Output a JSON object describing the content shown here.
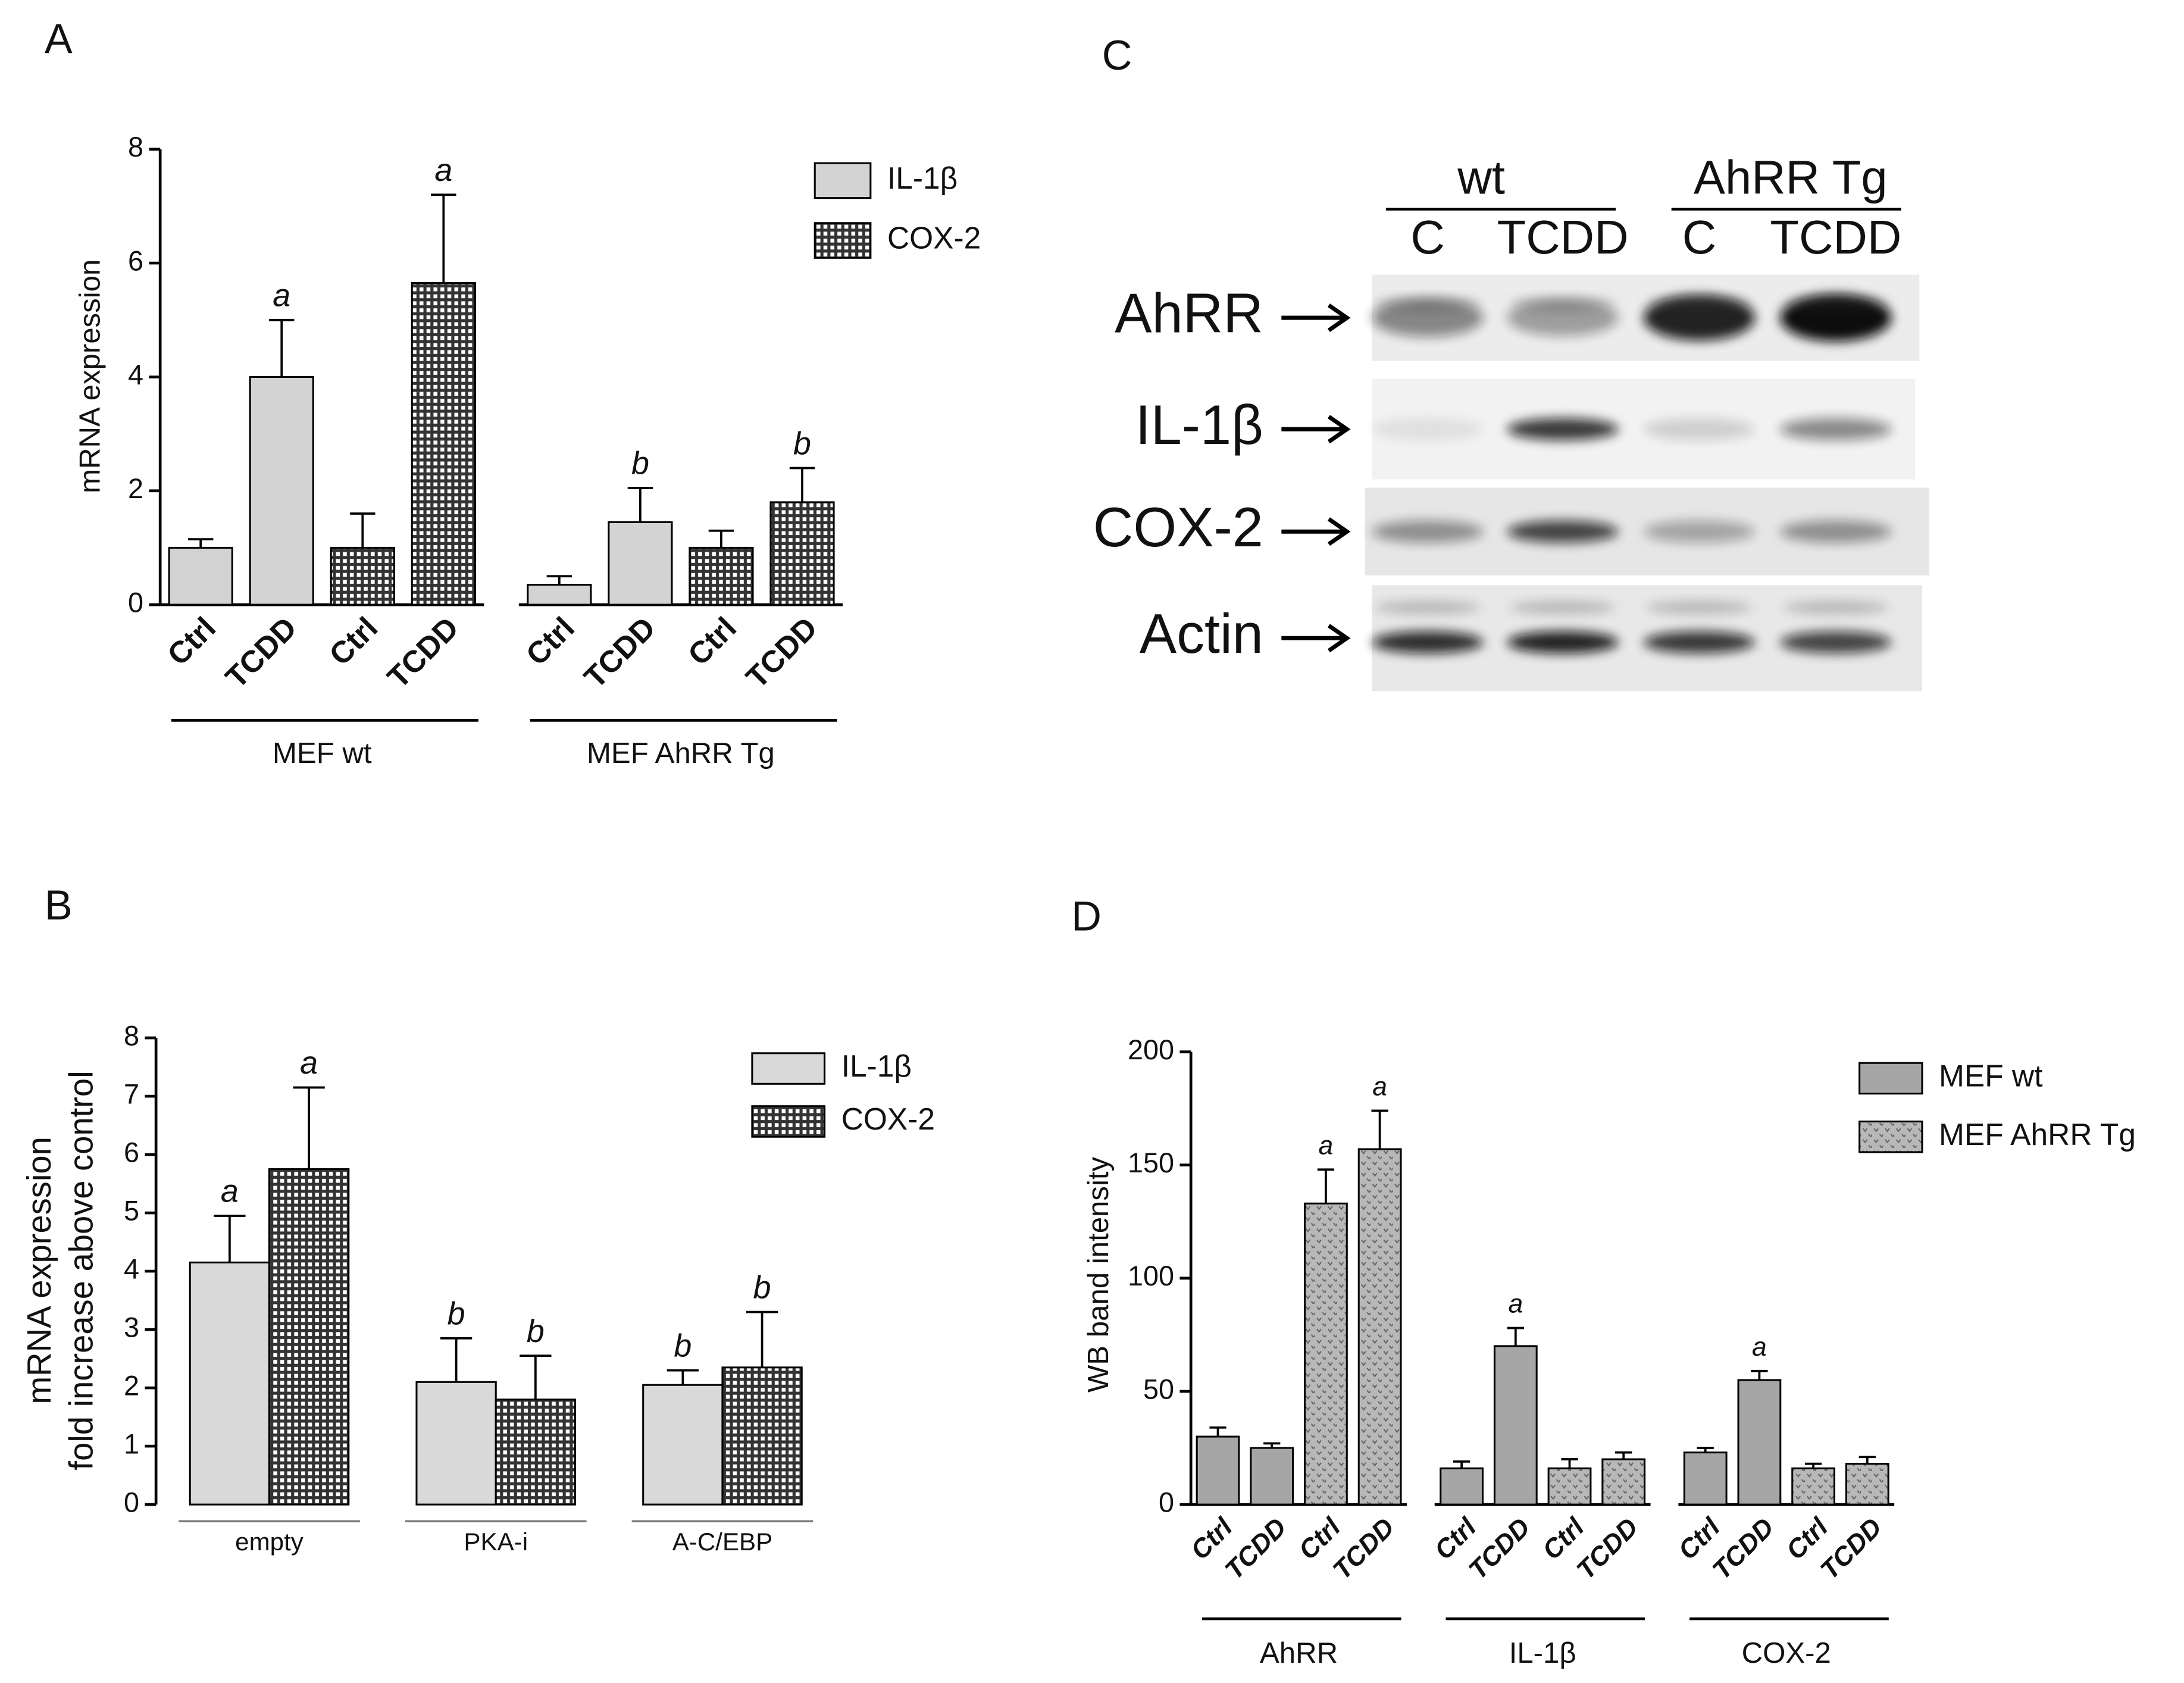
{
  "chart_data": [
    {
      "type": "bar",
      "panel": "A",
      "ylabel": "mRNA expression",
      "categories": [
        "Ctrl",
        "TCDD",
        "Ctrl",
        "TCDD",
        "Ctrl",
        "TCDD",
        "Ctrl",
        "TCDD"
      ],
      "groups": [
        "MEF wt",
        "MEF AhRR Tg"
      ],
      "series": [
        {
          "name": "IL-1β",
          "color": "#d3d3d3",
          "pattern": "solid",
          "values": [
            1.0,
            4.0,
            null,
            null,
            0.35,
            1.45,
            null,
            null
          ],
          "errors": [
            0.15,
            1.0,
            null,
            null,
            0.15,
            0.6,
            null,
            null
          ],
          "bar_labels": [
            null,
            "a",
            null,
            null,
            null,
            "b",
            null,
            null
          ]
        },
        {
          "name": "COX-2",
          "color": "#333333",
          "pattern": "grid",
          "values": [
            null,
            null,
            1.0,
            5.65,
            null,
            null,
            1.0,
            1.8
          ],
          "errors": [
            null,
            null,
            0.6,
            1.55,
            null,
            null,
            0.3,
            0.6
          ],
          "bar_labels": [
            null,
            null,
            null,
            "a",
            null,
            null,
            null,
            "b"
          ]
        }
      ],
      "ylim": [
        0,
        8
      ],
      "yticks": [
        0,
        2,
        4,
        6,
        8
      ]
    },
    {
      "type": "bar",
      "panel": "B",
      "ylabel": [
        "mRNA expression",
        "fold increase above control"
      ],
      "categories": [
        "empty",
        "PKA-i",
        "A-C/EBP"
      ],
      "series": [
        {
          "name": "IL-1β",
          "color": "#d9d9d9",
          "pattern": "solid",
          "values": [
            4.15,
            2.1,
            2.05
          ],
          "errors": [
            0.8,
            0.75,
            0.25
          ],
          "bar_labels": [
            "a",
            "b",
            "b"
          ]
        },
        {
          "name": "COX-2",
          "color": "#333333",
          "pattern": "grid",
          "values": [
            5.75,
            1.8,
            2.35
          ],
          "errors": [
            1.4,
            0.75,
            0.95
          ],
          "bar_labels": [
            "a",
            "b",
            "b"
          ]
        }
      ],
      "ylim": [
        0,
        8
      ],
      "yticks": [
        0,
        1,
        2,
        3,
        4,
        5,
        6,
        7,
        8
      ]
    },
    {
      "type": "bar",
      "panel": "D",
      "ylabel": "WB band intensity",
      "categories": [
        "Ctrl",
        "TCDD",
        "Ctrl",
        "TCDD",
        "Ctrl",
        "TCDD",
        "Ctrl",
        "TCDD",
        "Ctrl",
        "TCDD",
        "Ctrl",
        "TCDD"
      ],
      "groups": [
        "AhRR",
        "IL-1β",
        "COX-2"
      ],
      "series": [
        {
          "name": "MEF wt",
          "color": "#a6a6a6",
          "pattern": "solid",
          "values": [
            30,
            25,
            null,
            null,
            16,
            70,
            null,
            null,
            23,
            55,
            null,
            null
          ],
          "errors": [
            4,
            2,
            null,
            null,
            3,
            8,
            null,
            null,
            2,
            4,
            null,
            null
          ],
          "bar_labels": [
            null,
            null,
            null,
            null,
            null,
            "a",
            null,
            null,
            null,
            "a",
            null,
            null
          ]
        },
        {
          "name": "MEF AhRR Tg",
          "color": "#b8b8b8",
          "pattern": "dots",
          "values": [
            null,
            null,
            133,
            157,
            null,
            null,
            16,
            20,
            null,
            null,
            16,
            18
          ],
          "errors": [
            null,
            null,
            15,
            17,
            null,
            null,
            4,
            3,
            null,
            null,
            2,
            3
          ],
          "bar_labels": [
            null,
            null,
            "a",
            "a",
            null,
            null,
            null,
            null,
            null,
            null,
            null,
            null
          ]
        }
      ],
      "ylim": [
        0,
        200
      ],
      "yticks": [
        0,
        50,
        100,
        150,
        200
      ]
    }
  ],
  "blot": {
    "panel": "C",
    "groups": [
      "wt",
      "AhRR Tg"
    ],
    "lanes": [
      "C",
      "TCDD",
      "C",
      "TCDD"
    ],
    "rows": [
      "AhRR",
      "IL-1β",
      "COX-2",
      "Actin"
    ]
  }
}
